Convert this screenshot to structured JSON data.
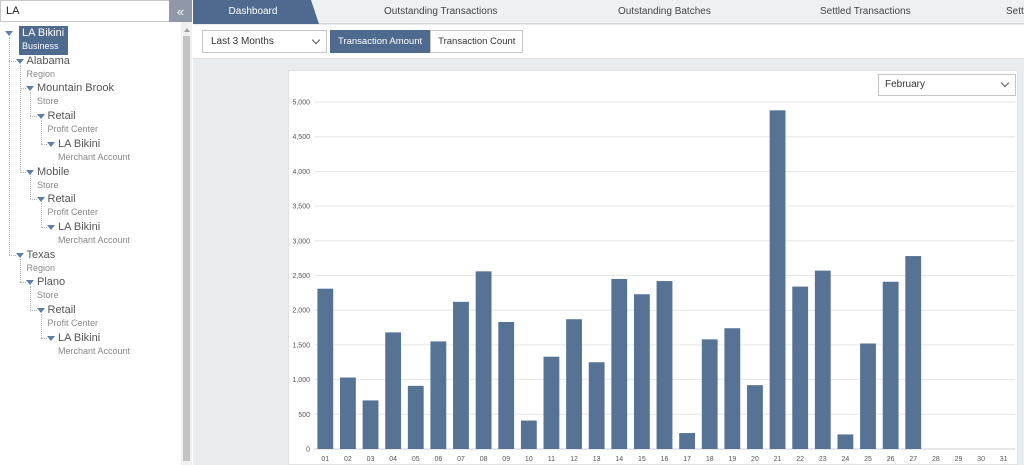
{
  "search": {
    "value": "LA"
  },
  "collapse_icon": "«",
  "tree": [
    {
      "name": "LA Bikini",
      "type": "Business",
      "level": 0,
      "selected": true
    },
    {
      "name": "Alabama",
      "type": "Region",
      "level": 1
    },
    {
      "name": "Mountain Brook",
      "type": "Store",
      "level": 2
    },
    {
      "name": "Retail",
      "type": "Profit Center",
      "level": 3
    },
    {
      "name": "LA Bikini",
      "type": "Merchant Account",
      "level": 4
    },
    {
      "name": "Mobile",
      "type": "Store",
      "level": 2
    },
    {
      "name": "Retail",
      "type": "Profit Center",
      "level": 3
    },
    {
      "name": "LA Bikini",
      "type": "Merchant Account",
      "level": 4
    },
    {
      "name": "Texas",
      "type": "Region",
      "level": 1
    },
    {
      "name": "Plano",
      "type": "Store",
      "level": 2
    },
    {
      "name": "Retail",
      "type": "Profit Center",
      "level": 3
    },
    {
      "name": "LA Bikini",
      "type": "Merchant Account",
      "level": 4
    }
  ],
  "tabs": [
    {
      "label": "Dashboard",
      "active": true
    },
    {
      "label": "Outstanding Transactions"
    },
    {
      "label": "Outstanding Batches"
    },
    {
      "label": "Settled Transactions"
    },
    {
      "label": "Sett"
    }
  ],
  "toolbar": {
    "period": "Last 3 Months",
    "metric_options": [
      "Transaction Amount",
      "Transaction Count"
    ],
    "active_metric": "Transaction Amount"
  },
  "month_select": "February",
  "colors": {
    "accent": "#4e6a8e",
    "bar": "#567396"
  },
  "chart_data": {
    "type": "bar",
    "categories": [
      "01",
      "02",
      "03",
      "04",
      "05",
      "06",
      "07",
      "08",
      "09",
      "10",
      "11",
      "12",
      "13",
      "14",
      "15",
      "16",
      "17",
      "18",
      "19",
      "20",
      "21",
      "22",
      "23",
      "24",
      "25",
      "26",
      "27",
      "28",
      "29",
      "30",
      "31"
    ],
    "values": [
      2310,
      1030,
      700,
      1680,
      910,
      1550,
      2120,
      2560,
      1830,
      410,
      1330,
      1870,
      1250,
      2450,
      2230,
      2420,
      230,
      1580,
      1740,
      920,
      4880,
      2340,
      2570,
      210,
      1520,
      2410,
      2780,
      0,
      0,
      0,
      0
    ],
    "ylim": [
      0,
      5000
    ],
    "yticks": [
      "0",
      "500",
      "1,000",
      "1,500",
      "2,000",
      "2,500",
      "3,000",
      "3,500",
      "4,000",
      "4,500",
      "5,000"
    ],
    "grid": true
  }
}
